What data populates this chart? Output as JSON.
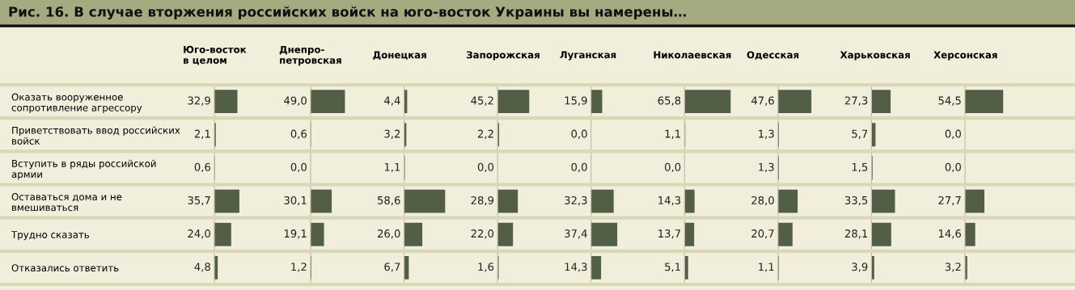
{
  "chart_data": [
    {
      "type": "bar",
      "orientation": "horizontal",
      "title": "Юго-восток\nв целом",
      "annotations": [
        "Рис. 16. В случае вторжения российских войск на юго-восток Украины вы намерены…"
      ],
      "categories": [
        "Оказать вооруженное\nсопротивление агрессору",
        "Приветствовать ввод российских\nвойск",
        "Вступить в ряды российской\nармии",
        "Оставаться дома и не\nвмешиваться",
        "Трудно сказать",
        "Отказались ответить"
      ],
      "values": [
        32.9,
        2.1,
        0.6,
        35.7,
        24.0,
        4.8
      ],
      "value_labels": [
        "32,9",
        "2,1",
        "0,6",
        "35,7",
        "24,0",
        "4,8"
      ],
      "color": "#525e45",
      "tick_labels": "y"
    },
    {
      "type": "bar",
      "orientation": "horizontal",
      "title": "Днепро-\nпетровская",
      "values": [
        49.0,
        0.6,
        0.0,
        30.1,
        19.1,
        1.2
      ],
      "value_labels": [
        "49,0",
        "0,6",
        "0,0",
        "30,1",
        "19,1",
        "1,2"
      ],
      "color": "#525e45",
      "tick_labels": false
    },
    {
      "type": "bar",
      "orientation": "horizontal",
      "title": "Донецкая",
      "values": [
        4.4,
        3.2,
        1.1,
        58.6,
        26.0,
        6.7
      ],
      "value_labels": [
        "4,4",
        "3,2",
        "1,1",
        "58,6",
        "26,0",
        "6,7"
      ],
      "color": "#525e45",
      "tick_labels": false
    },
    {
      "type": "bar",
      "orientation": "horizontal",
      "title": "Запорожская",
      "values": [
        45.2,
        2.2,
        0.0,
        28.9,
        22.0,
        1.6
      ],
      "value_labels": [
        "45,2",
        "2,2",
        "0,0",
        "28,9",
        "22,0",
        "1,6"
      ],
      "color": "#525e45",
      "tick_labels": false
    },
    {
      "type": "bar",
      "orientation": "horizontal",
      "title": "Луганская",
      "values": [
        15.9,
        0.0,
        0.0,
        32.3,
        37.4,
        14.3
      ],
      "value_labels": [
        "15,9",
        "0,0",
        "0,0",
        "32,3",
        "37,4",
        "14,3"
      ],
      "color": "#525e45",
      "tick_labels": false
    },
    {
      "type": "bar",
      "orientation": "horizontal",
      "title": "Николаевская",
      "values": [
        65.8,
        1.1,
        0.0,
        14.3,
        13.7,
        5.1
      ],
      "value_labels": [
        "65,8",
        "1,1",
        "0,0",
        "14,3",
        "13,7",
        "5,1"
      ],
      "color": "#525e45",
      "tick_labels": false
    },
    {
      "type": "bar",
      "orientation": "horizontal",
      "title": "Одесская",
      "values": [
        47.6,
        1.3,
        1.3,
        28.0,
        20.7,
        1.1
      ],
      "value_labels": [
        "47,6",
        "1,3",
        "1,3",
        "28,0",
        "20,7",
        "1,1"
      ],
      "color": "#525e45",
      "tick_labels": false
    },
    {
      "type": "bar",
      "orientation": "horizontal",
      "title": "Харьковская",
      "values": [
        27.3,
        5.7,
        1.5,
        33.5,
        28.1,
        3.9
      ],
      "value_labels": [
        "27,3",
        "5,7",
        "1,5",
        "33,5",
        "28,1",
        "3,9"
      ],
      "color": "#525e45",
      "tick_labels": false
    },
    {
      "type": "bar",
      "orientation": "horizontal",
      "title": "Херсонская",
      "values": [
        54.5,
        0.0,
        0.0,
        27.7,
        14.6,
        3.2
      ],
      "value_labels": [
        "54,5",
        "0,0",
        "0,0",
        "27,7",
        "14,6",
        "3,2"
      ],
      "color": "#525e45",
      "tick_labels": false
    }
  ]
}
